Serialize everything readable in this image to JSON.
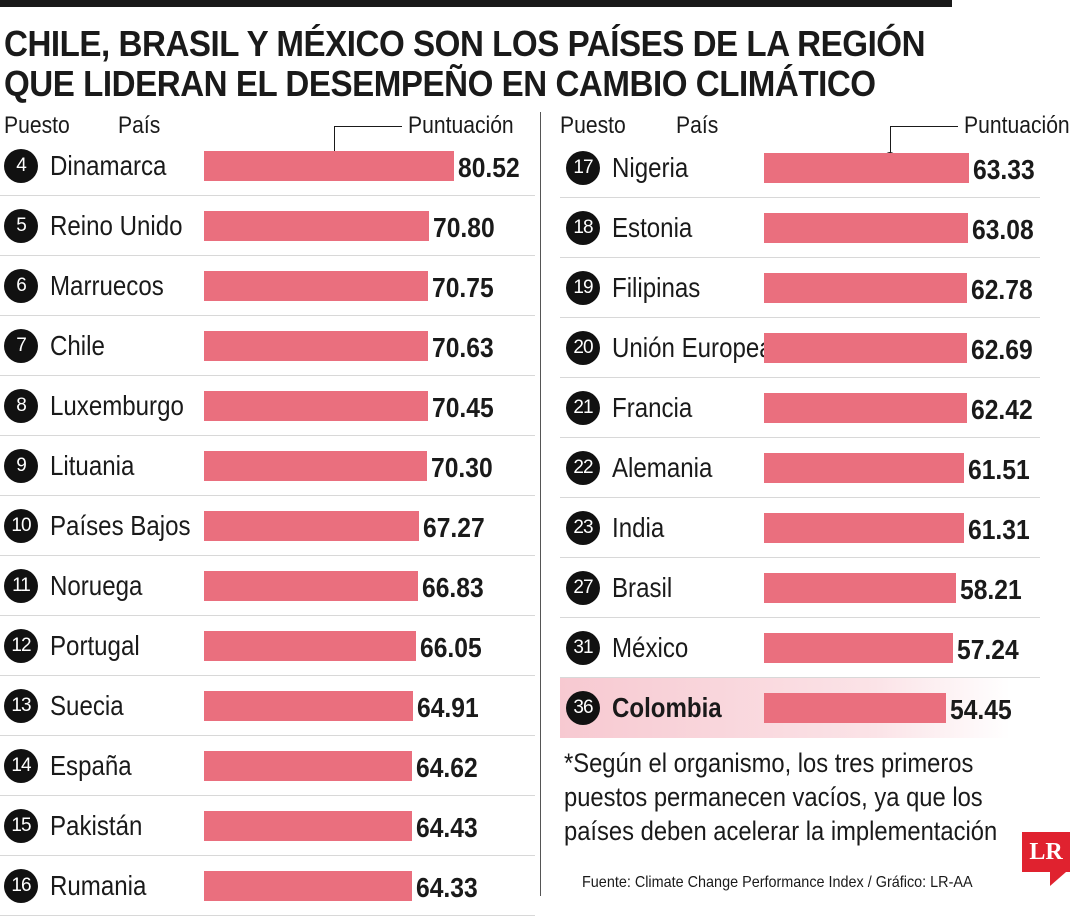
{
  "title_lines": [
    "CHILE, BRASIL Y MÉXICO SON LOS PAÍSES DE LA REGIÓN",
    "QUE LIDERAN EL DESEMPEÑO EN CAMBIO CLIMÁTICO"
  ],
  "headers": {
    "rank": "Puesto",
    "country": "País",
    "score": "Puntuación"
  },
  "note_lines": [
    "*Según el organismo, los tres primeros",
    "puestos permanecen vacíos, ya que los",
    "países deben acelerar la implementación"
  ],
  "source": "Fuente: Climate Change Performance Index / Gráfico: LR-AA",
  "logo_text": "LR",
  "colors": {
    "bar": "#ea6f7e",
    "highlight": "#f7c9d1",
    "logo": "#e0222f"
  },
  "chart_data": {
    "type": "bar",
    "orientation": "horizontal",
    "title": "CHILE, BRASIL Y MÉXICO SON LOS PAÍSES DE LA REGIÓN QUE LIDERAN EL DESEMPEÑO EN CAMBIO CLIMÁTICO",
    "xlabel": "Puntuación",
    "ylabel": "País",
    "columns": [
      [
        {
          "rank": "4",
          "country": "Dinamarca",
          "value": 80.52
        },
        {
          "rank": "5",
          "country": "Reino Unido",
          "value": 70.8
        },
        {
          "rank": "6",
          "country": "Marruecos",
          "value": 70.75
        },
        {
          "rank": "7",
          "country": "Chile",
          "value": 70.63
        },
        {
          "rank": "8",
          "country": "Luxemburgo",
          "value": 70.45
        },
        {
          "rank": "9",
          "country": "Lituania",
          "value": 70.3
        },
        {
          "rank": "10",
          "country": "Países Bajos",
          "value": 67.27
        },
        {
          "rank": "11",
          "country": "Noruega",
          "value": 66.83
        },
        {
          "rank": "12",
          "country": "Portugal",
          "value": 66.05
        },
        {
          "rank": "13",
          "country": "Suecia",
          "value": 64.91
        },
        {
          "rank": "14",
          "country": "España",
          "value": 64.62
        },
        {
          "rank": "15",
          "country": "Pakistán",
          "value": 64.43
        },
        {
          "rank": "16",
          "country": "Rumania",
          "value": 64.33
        }
      ],
      [
        {
          "rank": "17",
          "country": "Nigeria",
          "value": 63.33
        },
        {
          "rank": "18",
          "country": "Estonia",
          "value": 63.08
        },
        {
          "rank": "19",
          "country": "Filipinas",
          "value": 62.78
        },
        {
          "rank": "20",
          "country": "Unión Europea",
          "value": 62.69
        },
        {
          "rank": "21",
          "country": "Francia",
          "value": 62.42
        },
        {
          "rank": "22",
          "country": "Alemania",
          "value": 61.51
        },
        {
          "rank": "23",
          "country": "India",
          "value": 61.31
        },
        {
          "rank": "27",
          "country": "Brasil",
          "value": 58.21
        },
        {
          "rank": "31",
          "country": "México",
          "value": 57.24
        },
        {
          "rank": "36",
          "country": "Colombia",
          "value": 54.45,
          "highlight": true
        }
      ]
    ]
  }
}
